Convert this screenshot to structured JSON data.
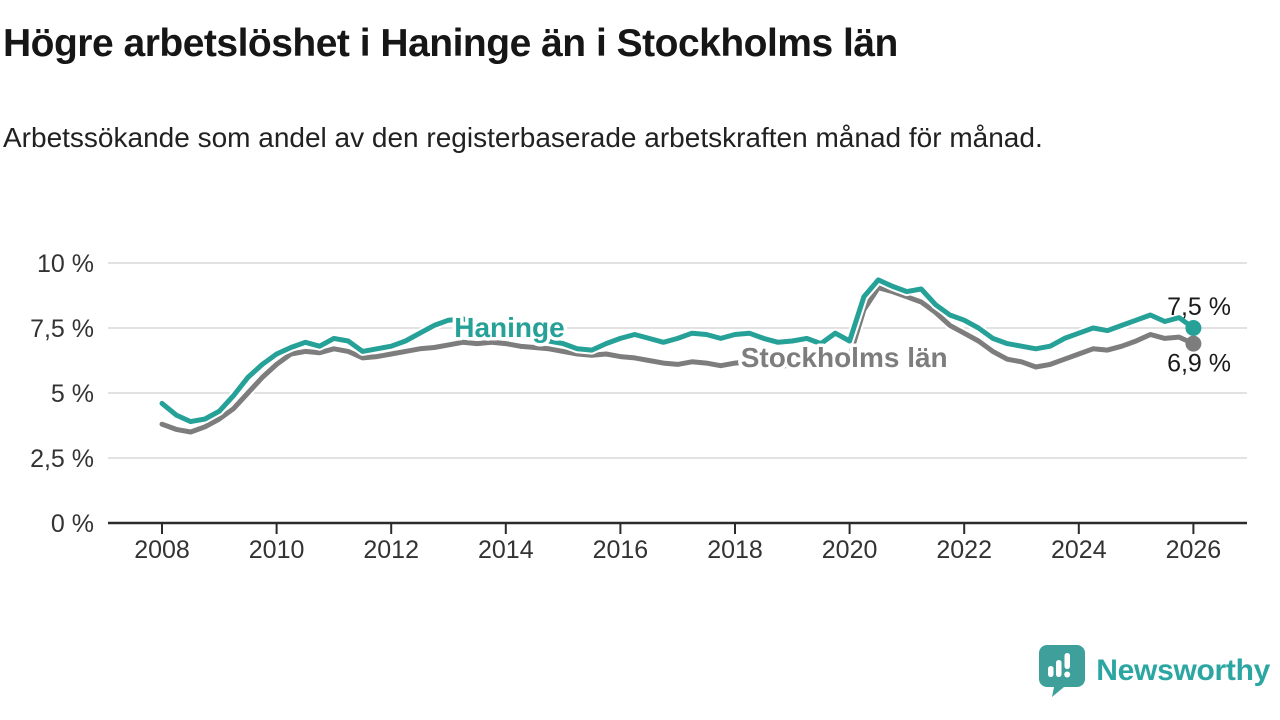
{
  "header": {
    "title": "Högre arbetslöshet i Haninge än i Stockholms län",
    "subtitle": "Arbetssökande som andel av den registerbaserade arbetskraften månad för månad."
  },
  "colors": {
    "haninge": "#26a198",
    "stockholm": "#7d7d7d",
    "grid": "#d9d9d9",
    "axis": "#2b2b2b",
    "tick_label": "#333333",
    "end_label": "#1a1a1a",
    "logo_icon": "#3fa09b",
    "logo_text": "#2ca6a2"
  },
  "chart_data": {
    "type": "line",
    "title": "Högre arbetslöshet i Haninge än i Stockholms län",
    "xlabel": "",
    "ylabel": "",
    "ylim": [
      0,
      10.5
    ],
    "x_start": 2008,
    "x_step": 0.25,
    "grid": "horizontal",
    "legend_position": "inline-labels",
    "x": [
      2008,
      2008.25,
      2008.5,
      2008.75,
      2009,
      2009.25,
      2009.5,
      2009.75,
      2010,
      2010.25,
      2010.5,
      2010.75,
      2011,
      2011.25,
      2011.5,
      2011.75,
      2012,
      2012.25,
      2012.5,
      2012.75,
      2013,
      2013.25,
      2013.5,
      2013.75,
      2014,
      2014.25,
      2014.5,
      2014.75,
      2015,
      2015.25,
      2015.5,
      2015.75,
      2016,
      2016.25,
      2016.5,
      2016.75,
      2017,
      2017.25,
      2017.5,
      2017.75,
      2018,
      2018.25,
      2018.5,
      2018.75,
      2019,
      2019.25,
      2019.5,
      2019.75,
      2020,
      2020.25,
      2020.5,
      2020.75,
      2021,
      2021.25,
      2021.5,
      2021.75,
      2022,
      2022.25,
      2022.5,
      2022.75,
      2023,
      2023.25,
      2023.5,
      2023.75,
      2024,
      2024.25,
      2024.5,
      2024.75,
      2025,
      2025.25,
      2025.5,
      2025.75,
      2026
    ],
    "series": [
      {
        "name": "Haninge",
        "color": "#26a198",
        "end_label": "7,5 %",
        "end_value": 7.5,
        "label_pos": {
          "year": 2013.1,
          "value": 7.54
        },
        "values": [
          4.6,
          4.15,
          3.9,
          4.0,
          4.3,
          4.9,
          5.6,
          6.1,
          6.5,
          6.75,
          6.95,
          6.8,
          7.1,
          7.0,
          6.6,
          6.7,
          6.8,
          7.0,
          7.3,
          7.6,
          7.8,
          7.85,
          7.7,
          7.6,
          7.45,
          7.25,
          7.1,
          7.0,
          6.9,
          6.7,
          6.65,
          6.9,
          7.1,
          7.25,
          7.1,
          6.95,
          7.1,
          7.3,
          7.25,
          7.1,
          7.25,
          7.3,
          7.1,
          6.95,
          7.0,
          7.1,
          6.9,
          7.3,
          7.0,
          8.7,
          9.35,
          9.1,
          8.9,
          9.0,
          8.4,
          8.0,
          7.8,
          7.5,
          7.1,
          6.9,
          6.8,
          6.7,
          6.8,
          7.1,
          7.3,
          7.5,
          7.4,
          7.6,
          7.8,
          8.0,
          7.75,
          7.9,
          7.5
        ]
      },
      {
        "name": "Stockholms län",
        "color": "#7d7d7d",
        "end_label": "6,9 %",
        "end_value": 6.9,
        "label_pos": {
          "year": 2018.1,
          "value": 6.38
        },
        "values": [
          3.8,
          3.6,
          3.5,
          3.7,
          4.0,
          4.4,
          5.0,
          5.6,
          6.1,
          6.5,
          6.6,
          6.55,
          6.7,
          6.6,
          6.35,
          6.4,
          6.5,
          6.6,
          6.7,
          6.75,
          6.85,
          6.95,
          6.9,
          6.95,
          6.9,
          6.8,
          6.75,
          6.7,
          6.6,
          6.5,
          6.45,
          6.5,
          6.4,
          6.35,
          6.25,
          6.15,
          6.1,
          6.2,
          6.15,
          6.05,
          6.15,
          6.2,
          6.1,
          6.0,
          6.1,
          6.2,
          6.15,
          6.3,
          6.4,
          8.2,
          9.05,
          8.9,
          8.7,
          8.5,
          8.1,
          7.6,
          7.3,
          7.0,
          6.6,
          6.3,
          6.2,
          6.0,
          6.1,
          6.3,
          6.5,
          6.7,
          6.65,
          6.8,
          7.0,
          7.25,
          7.1,
          7.15,
          6.9
        ]
      }
    ],
    "yticks": [
      "0 %",
      "2,5 %",
      "5 %",
      "7,5 %",
      "10 %"
    ],
    "ytick_values": [
      0,
      2.5,
      5,
      7.5,
      10
    ],
    "xticks": [
      2008,
      2010,
      2012,
      2014,
      2016,
      2018,
      2020,
      2022,
      2024,
      2026
    ]
  },
  "footer": {
    "logo_text": "Newsworthy"
  }
}
